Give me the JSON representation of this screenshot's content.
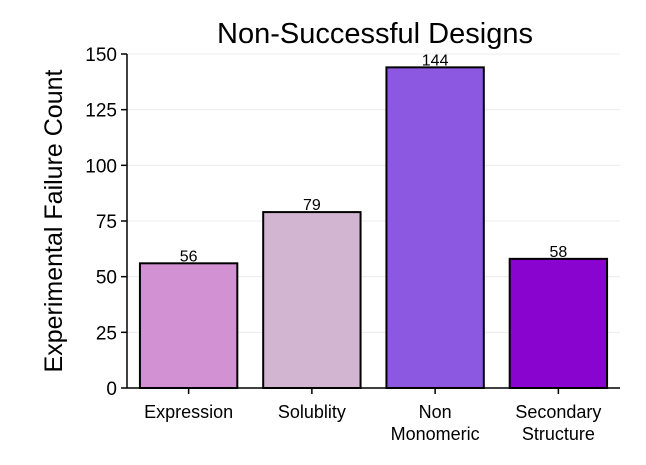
{
  "chart_data": {
    "type": "bar",
    "title": "Non-Successful Designs",
    "xlabel": "",
    "ylabel": "Experimental Failure Count",
    "categories": [
      "Expression",
      "Solublity",
      "Non\nMonomeric",
      "Secondary\nStructure"
    ],
    "values": [
      56,
      79,
      144,
      58
    ],
    "data_labels": [
      "56",
      "79",
      "144",
      "58"
    ],
    "colors": [
      "#d291d2",
      "#d1b5d1",
      "#8c57e1",
      "#8a04cf"
    ],
    "ylim": [
      0,
      150
    ],
    "yticks": [
      0,
      25,
      50,
      75,
      100,
      125,
      150
    ],
    "grid": true,
    "legend": "none"
  }
}
